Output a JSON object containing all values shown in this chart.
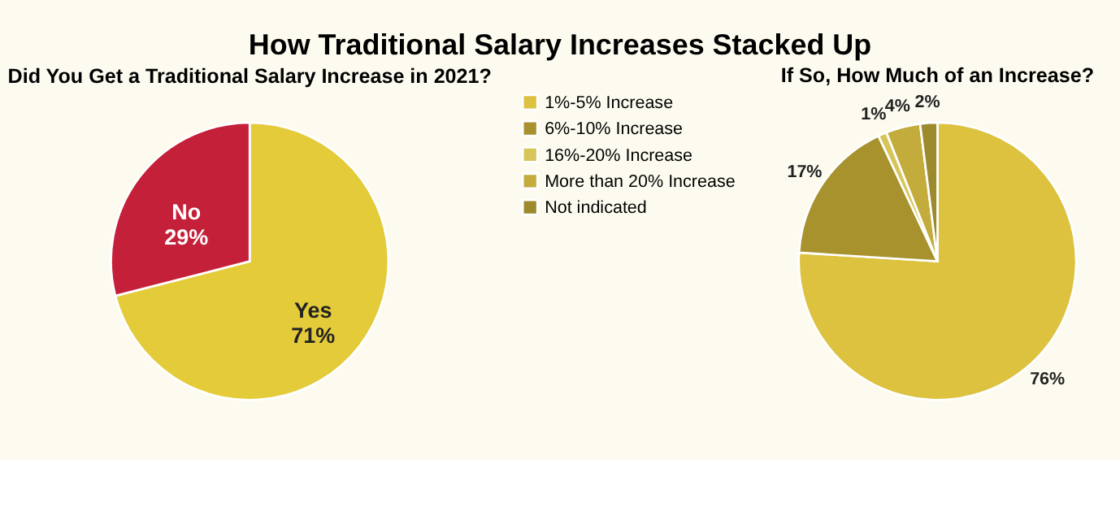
{
  "chart_data": [
    {
      "type": "pie",
      "title": "How Traditional Salary Increases Stacked Up",
      "subtitle": "Did You Get a Traditional Salary Increase in 2021?",
      "categories": [
        "Yes",
        "No"
      ],
      "values": [
        71,
        29
      ],
      "colors": [
        "#e4cb3a",
        "#c5203a"
      ],
      "value_labels": [
        "71%",
        "29%"
      ]
    },
    {
      "type": "pie",
      "title": "If So, How Much of an Increase?",
      "categories": [
        "1%-5% Increase",
        "6%-10% Increase",
        "16%-20% Increase",
        "More than 20% Increase",
        "Not indicated"
      ],
      "values": [
        76,
        17,
        1,
        4,
        2
      ],
      "colors": [
        "#dcc23f",
        "#a8922e",
        "#d8c55a",
        "#c3ac3c",
        "#9c8a2c"
      ],
      "value_labels": [
        "76%",
        "17%",
        "1%",
        "4%",
        "2%"
      ],
      "legend": "left"
    }
  ]
}
